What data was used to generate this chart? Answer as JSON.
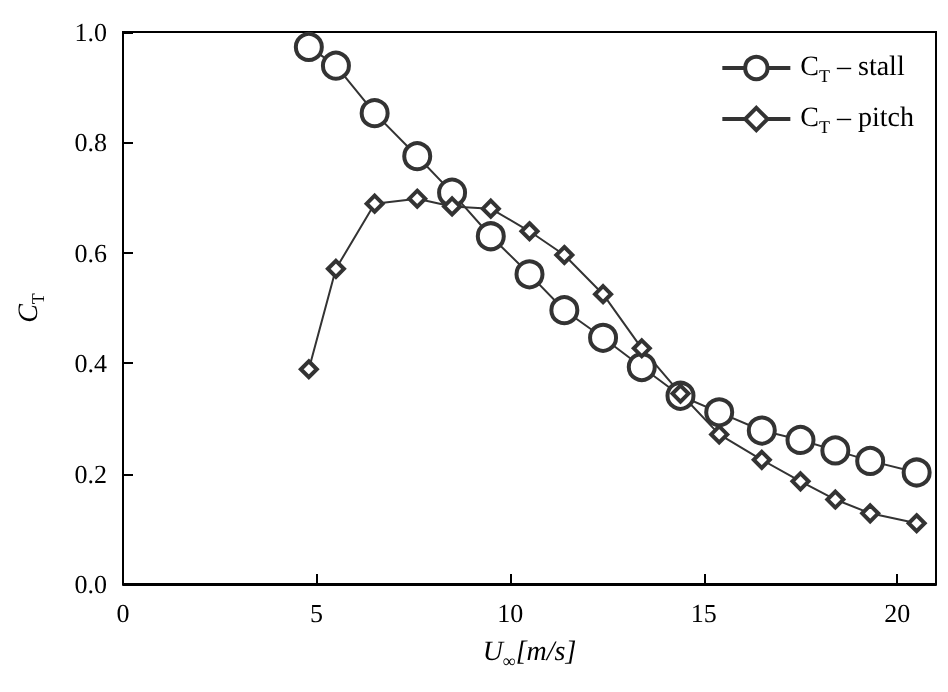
{
  "chart_data": {
    "type": "line",
    "xlabel": "U$_{∞}$[m/s]",
    "ylabel": "C$_{T}$",
    "xlim": [
      0,
      21
    ],
    "xticks": [
      0,
      5,
      10,
      15,
      20
    ],
    "ylim": [
      0,
      1
    ],
    "yticks": [
      {
        "value": 0,
        "label": "0.0"
      },
      {
        "value": 0.2,
        "label": "0.2"
      },
      {
        "value": 0.4,
        "label": "0.4"
      },
      {
        "value": 0.6,
        "label": "0.6"
      },
      {
        "value": 0.8,
        "label": "0.8"
      },
      {
        "value": 1,
        "label": "1.0"
      }
    ],
    "grid": false,
    "legend": "top right",
    "line_style": "solid",
    "x": [
      4.8,
      5.5,
      6.5,
      7.6,
      8.5,
      9.5,
      10.5,
      11.4,
      12.4,
      13.4,
      14.4,
      15.4,
      16.5,
      17.5,
      18.4,
      19.3,
      20.5
    ],
    "series": [
      {
        "name": "C$_{T}$ – stall",
        "color": "#333333",
        "marker": "circle",
        "values": [
          0.973,
          0.939,
          0.853,
          0.775,
          0.709,
          0.63,
          0.561,
          0.496,
          0.446,
          0.393,
          0.341,
          0.311,
          0.278,
          0.261,
          0.242,
          0.223,
          0.202
        ]
      },
      {
        "name": "C$_{T}$ – pitch",
        "color": "#333333",
        "marker": "diamond",
        "values": [
          0.389,
          0.571,
          0.689,
          0.698,
          0.684,
          0.68,
          0.639,
          0.596,
          0.525,
          0.427,
          0.345,
          0.271,
          0.225,
          0.186,
          0.153,
          0.128,
          0.11
        ]
      }
    ]
  }
}
